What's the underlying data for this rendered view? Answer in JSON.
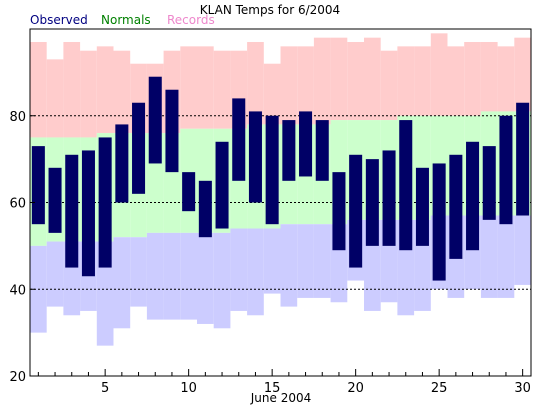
{
  "chart_data": {
    "type": "bar",
    "title": "KLAN Temps for 6/2004",
    "xlabel": "June 2004",
    "ylabel": "",
    "ylim": [
      20,
      100
    ],
    "xlim": [
      0.5,
      30.5
    ],
    "yticks": [
      20,
      40,
      60,
      80
    ],
    "xticks": [
      5,
      10,
      15,
      20,
      25,
      30
    ],
    "grid": {
      "y_dashed_lines": [
        40,
        60,
        80
      ]
    },
    "legend": [
      "Observed",
      "Normals",
      "Records"
    ],
    "colors": {
      "observed": "#000066",
      "normals": "#ccffcc",
      "records": "#ffcccc",
      "lows_band": "#ccccff",
      "legend_observed": "#000080",
      "legend_normals": "#008000",
      "legend_records": "#ee88cc"
    },
    "days": [
      1,
      2,
      3,
      4,
      5,
      6,
      7,
      8,
      9,
      10,
      11,
      12,
      13,
      14,
      15,
      16,
      17,
      18,
      19,
      20,
      21,
      22,
      23,
      24,
      25,
      26,
      27,
      28,
      29,
      30
    ],
    "series": [
      {
        "name": "Records",
        "high": [
          97,
          93,
          97,
          95,
          96,
          95,
          92,
          92,
          95,
          96,
          96,
          95,
          95,
          97,
          92,
          96,
          96,
          98,
          98,
          97,
          98,
          95,
          96,
          96,
          99,
          96,
          97,
          97,
          96,
          98
        ],
        "low": [
          30,
          36,
          34,
          35,
          27,
          31,
          36,
          33,
          33,
          33,
          32,
          31,
          35,
          34,
          39,
          36,
          38,
          38,
          37,
          42,
          35,
          37,
          34,
          35,
          40,
          38,
          40,
          38,
          38,
          41
        ]
      },
      {
        "name": "Normals",
        "high": [
          75,
          75,
          75,
          75,
          76,
          76,
          76,
          76,
          76,
          77,
          77,
          77,
          77,
          78,
          78,
          78,
          78,
          78,
          79,
          79,
          79,
          79,
          80,
          80,
          80,
          80,
          80,
          81,
          81,
          81
        ],
        "low": [
          50,
          51,
          51,
          51,
          51,
          52,
          52,
          53,
          53,
          53,
          53,
          53,
          54,
          54,
          54,
          55,
          55,
          55,
          55,
          56,
          56,
          56,
          56,
          56,
          57,
          57,
          57,
          57,
          57,
          57
        ]
      },
      {
        "name": "Observed",
        "high": [
          73,
          68,
          71,
          72,
          75,
          78,
          83,
          89,
          86,
          67,
          65,
          74,
          84,
          81,
          80,
          79,
          81,
          79,
          67,
          71,
          70,
          72,
          79,
          68,
          69,
          71,
          74,
          73,
          80,
          83
        ],
        "low": [
          55,
          53,
          45,
          43,
          45,
          60,
          62,
          69,
          67,
          58,
          52,
          54,
          65,
          60,
          55,
          65,
          66,
          65,
          49,
          45,
          50,
          50,
          49,
          50,
          42,
          47,
          49,
          56,
          55,
          57
        ]
      }
    ]
  }
}
